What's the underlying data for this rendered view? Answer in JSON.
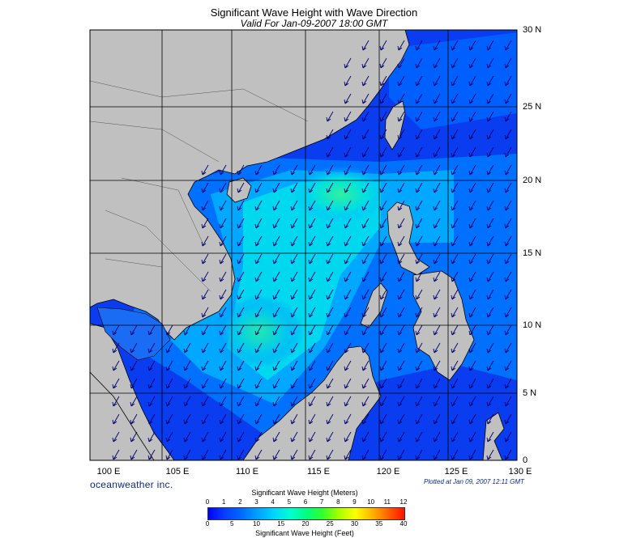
{
  "header": {
    "title": "Significant Wave Height with Wave Direction",
    "subtitle": "Valid For Jan-09-2007 18:00 GMT"
  },
  "map": {
    "lat_labels": [
      "30 N",
      "25 N",
      "20 N",
      "15 N",
      "10 N",
      "5 N",
      "0"
    ],
    "lon_labels": [
      "100 E",
      "105 E",
      "110 E",
      "115 E",
      "120 E",
      "125 E",
      "130 E"
    ],
    "land_color": "#c0c0c0",
    "sea_colors": [
      "#0028ff",
      "#0066ff",
      "#00a8ff",
      "#00e0e8",
      "#20f0a0"
    ],
    "arrow_color": "#000080"
  },
  "footer": {
    "brand": "oceanweather inc.",
    "plotted": "Plotted at Jan 09, 2007 12:11 GMT"
  },
  "colorbar": {
    "title_meters": "Significant Wave Height (Meters)",
    "title_feet": "Significant Wave Height (Feet)",
    "meter_ticks": [
      "0",
      "1",
      "2",
      "3",
      "4",
      "5",
      "6",
      "7",
      "8",
      "9",
      "10",
      "11",
      "12"
    ],
    "feet_ticks": [
      "0",
      "5",
      "10",
      "15",
      "20",
      "25",
      "30",
      "35",
      "40"
    ]
  }
}
